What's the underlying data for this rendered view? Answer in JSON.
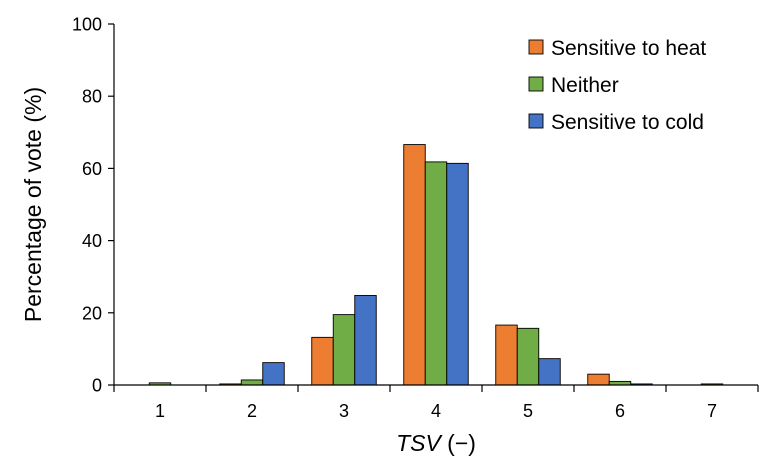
{
  "chart_data": {
    "type": "bar",
    "title": "",
    "xlabel_italic": "TSV",
    "xlabel_rest": " (−)",
    "ylabel": "Percentage of vote (%)",
    "categories": [
      "1",
      "2",
      "3",
      "4",
      "5",
      "6",
      "7"
    ],
    "ylim": [
      0,
      100
    ],
    "yticks": [
      0,
      20,
      40,
      60,
      80,
      100
    ],
    "grid": false,
    "legend_position": "top-right",
    "series": [
      {
        "name": "Sensitive to heat",
        "color": "#ED7D31",
        "values": [
          0,
          0.3,
          13.2,
          66.6,
          16.6,
          3.0,
          0
        ]
      },
      {
        "name": "Neither",
        "color": "#70AD47",
        "values": [
          0.6,
          1.4,
          19.5,
          61.8,
          15.7,
          1.0,
          0.3
        ]
      },
      {
        "name": "Sensitive to cold",
        "color": "#4472C4",
        "values": [
          0,
          6.2,
          24.8,
          61.4,
          7.3,
          0.3,
          0
        ]
      }
    ]
  }
}
